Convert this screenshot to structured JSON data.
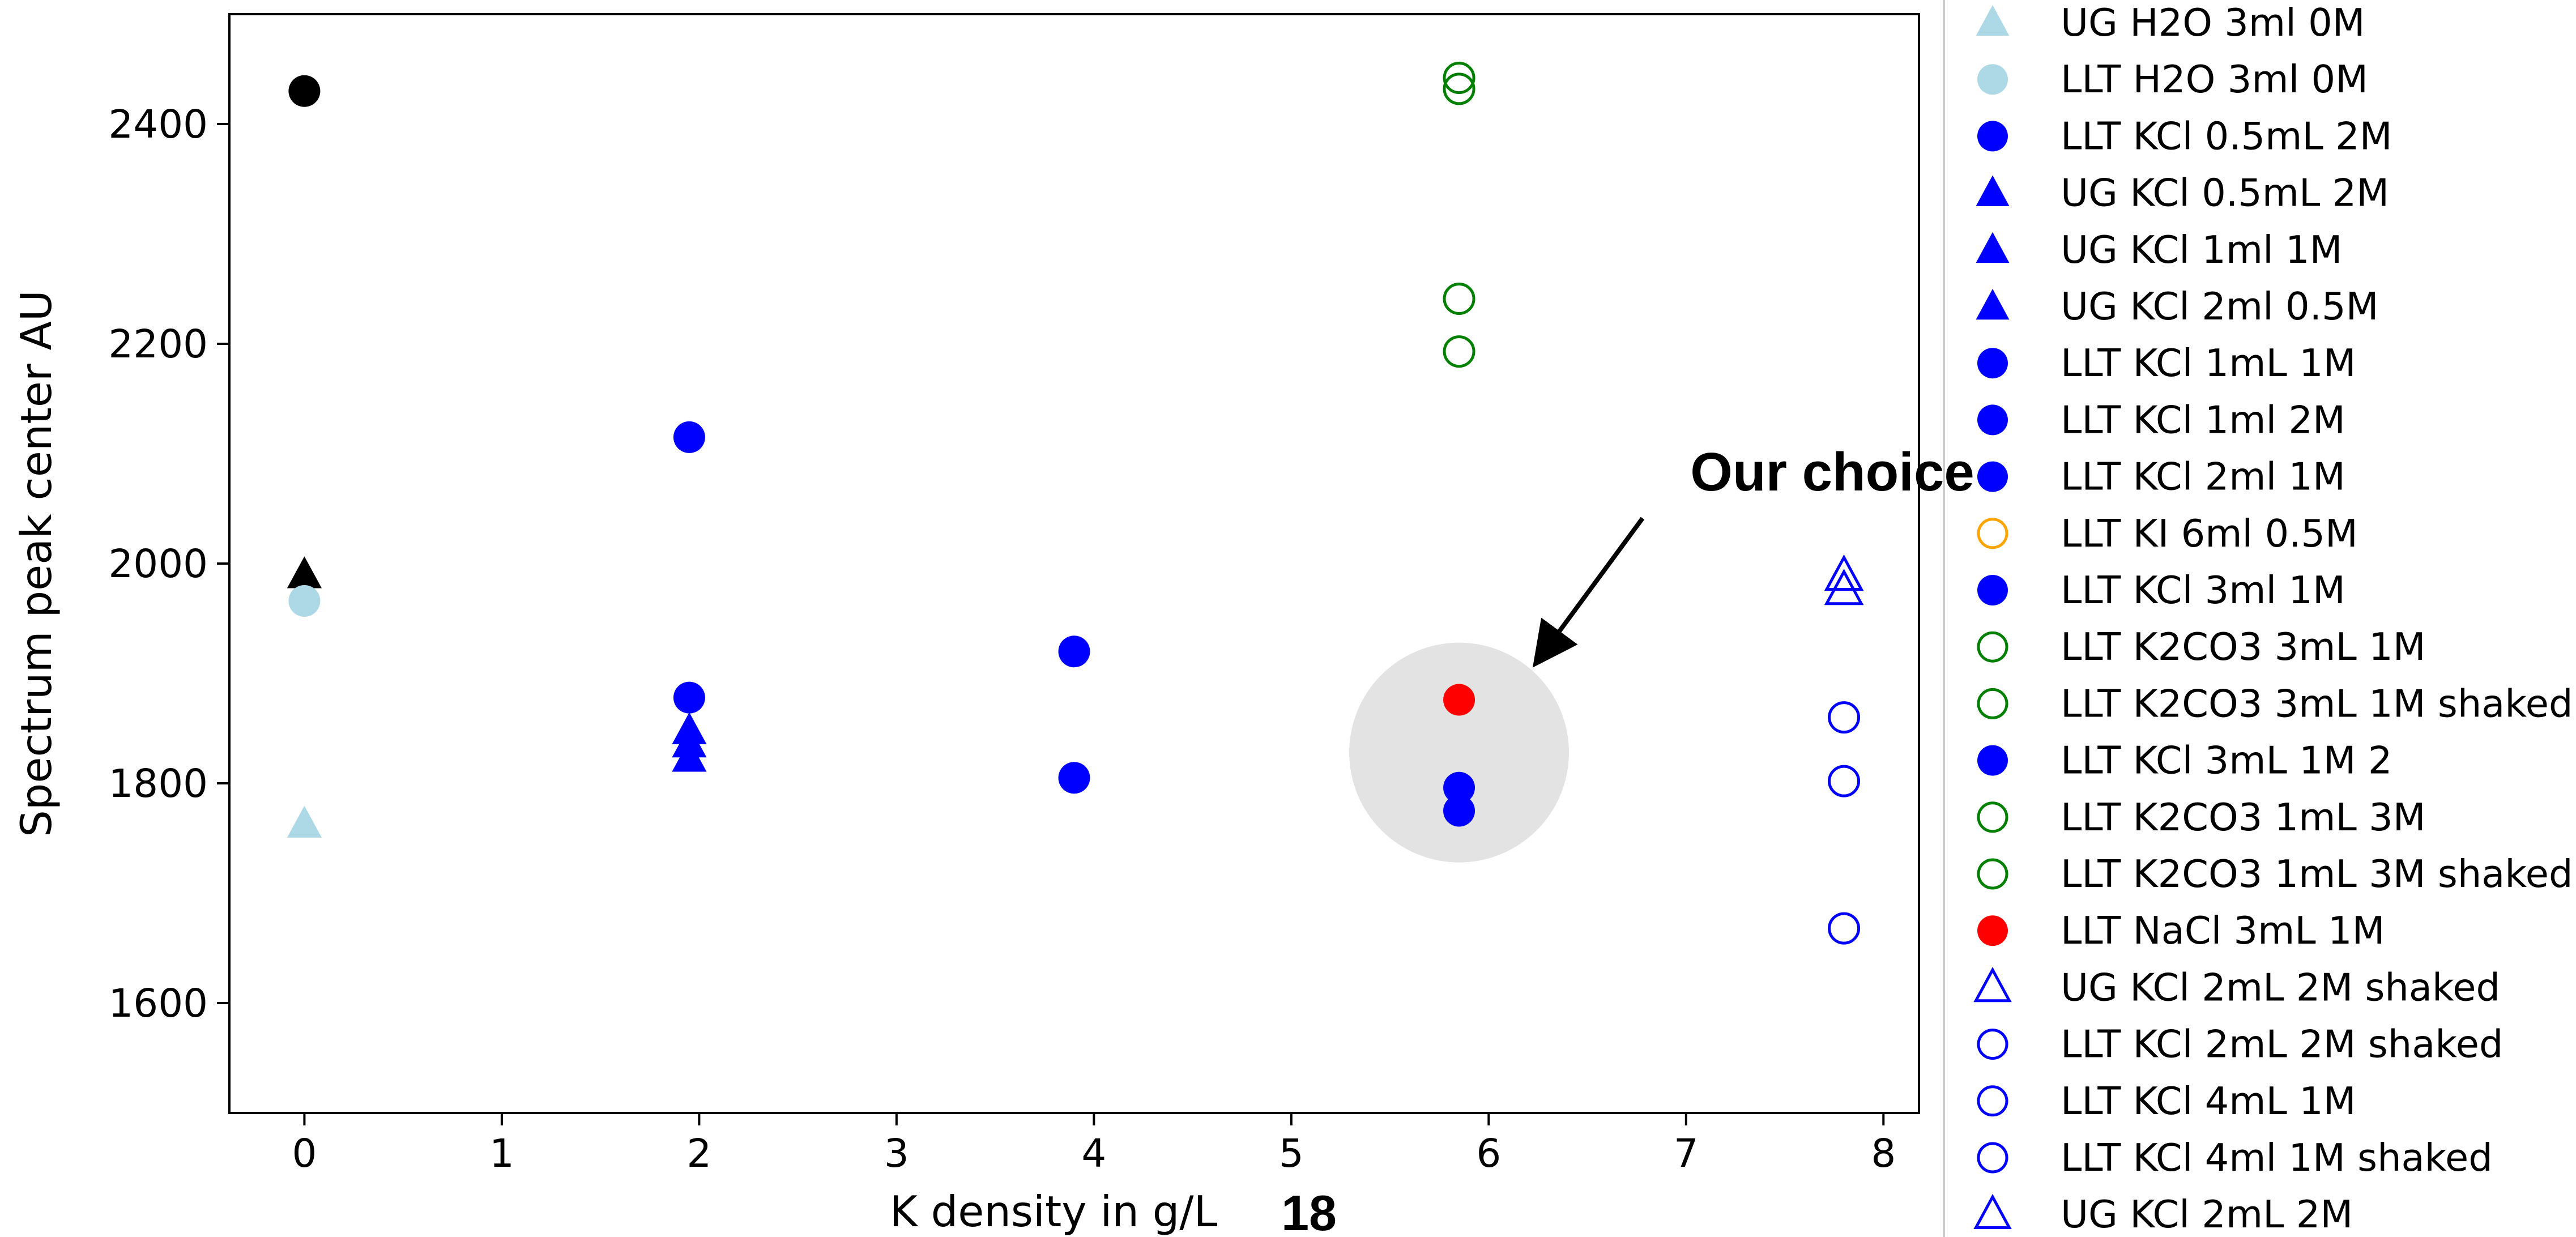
{
  "page_number": "18",
  "chart_data": {
    "type": "scatter",
    "title": "",
    "xlabel": "K density in g/L",
    "ylabel": "Spectrum peak center AU",
    "xlim": [
      -0.38,
      8.18
    ],
    "ylim": [
      1500,
      2500
    ],
    "xticks": [
      0,
      1,
      2,
      3,
      4,
      5,
      6,
      7,
      8
    ],
    "yticks": [
      1600,
      1800,
      2000,
      2200,
      2400
    ],
    "grid": false,
    "legend_position": "outside-right",
    "annotation": {
      "text": "Our choice",
      "arrow_to": [
        6.25,
        1912
      ]
    },
    "highlight_region": {
      "center": [
        5.85,
        1828
      ],
      "radius_y": 100,
      "color": "#e3e3e3"
    },
    "series": [
      {
        "name": "",
        "marker": "circle",
        "filled": true,
        "color": "#000000",
        "points": [
          [
            0,
            2430
          ]
        ]
      },
      {
        "name": "",
        "marker": "triangle",
        "filled": true,
        "color": "#000000",
        "points": [
          [
            0,
            1990
          ]
        ]
      },
      {
        "name": "UG H2O 3ml 0M",
        "marker": "triangle",
        "filled": true,
        "color": "#add8e6",
        "points": [
          [
            0,
            1763
          ]
        ]
      },
      {
        "name": "LLT H2O 3ml 0M",
        "marker": "circle",
        "filled": true,
        "color": "#add8e6",
        "points": [
          [
            0,
            1966
          ]
        ]
      },
      {
        "name": "LLT KCl 0.5mL 2M",
        "marker": "circle",
        "filled": true,
        "color": "#0000ff",
        "points": [
          [
            1.95,
            1878
          ]
        ]
      },
      {
        "name": "UG KCl 0.5mL 2M",
        "marker": "triangle",
        "filled": true,
        "color": "#0000ff",
        "points": [
          [
            1.95,
            1848
          ]
        ]
      },
      {
        "name": "UG KCl 1ml 1M",
        "marker": "triangle",
        "filled": true,
        "color": "#0000ff",
        "points": [
          [
            1.95,
            1836
          ]
        ]
      },
      {
        "name": "UG KCl 2ml 0.5M",
        "marker": "triangle",
        "filled": true,
        "color": "#0000ff",
        "points": [
          [
            1.95,
            1823
          ]
        ]
      },
      {
        "name": "LLT KCl 1mL 1M",
        "marker": "circle",
        "filled": true,
        "color": "#0000ff",
        "points": [
          [
            1.95,
            2115
          ]
        ]
      },
      {
        "name": "LLT KCl 1ml 2M",
        "marker": "circle",
        "filled": true,
        "color": "#0000ff",
        "points": [
          [
            3.9,
            1920
          ]
        ]
      },
      {
        "name": "LLT KCl 2ml 1M",
        "marker": "circle",
        "filled": true,
        "color": "#0000ff",
        "points": [
          [
            3.9,
            1805
          ]
        ]
      },
      {
        "name": "LLT KI 6ml 0.5M",
        "marker": "circle",
        "filled": false,
        "color": "#ffa500",
        "points": []
      },
      {
        "name": "LLT KCl 3ml 1M",
        "marker": "circle",
        "filled": true,
        "color": "#0000ff",
        "points": [
          [
            5.85,
            1796
          ]
        ]
      },
      {
        "name": "LLT K2CO3 3mL 1M",
        "marker": "circle",
        "filled": false,
        "color": "#008000",
        "points": [
          [
            5.85,
            2442
          ]
        ]
      },
      {
        "name": "LLT K2CO3 3mL 1M shaked",
        "marker": "circle",
        "filled": false,
        "color": "#008000",
        "points": [
          [
            5.85,
            2432
          ]
        ]
      },
      {
        "name": "LLT KCl 3mL 1M 2",
        "marker": "circle",
        "filled": true,
        "color": "#0000ff",
        "points": [
          [
            5.85,
            1775
          ]
        ]
      },
      {
        "name": "LLT K2CO3 1mL 3M",
        "marker": "circle",
        "filled": false,
        "color": "#008000",
        "points": [
          [
            5.85,
            2241
          ]
        ]
      },
      {
        "name": "LLT K2CO3 1mL 3M shaked",
        "marker": "circle",
        "filled": false,
        "color": "#008000",
        "points": [
          [
            5.85,
            2193
          ]
        ]
      },
      {
        "name": "LLT NaCl 3mL 1M",
        "marker": "circle",
        "filled": true,
        "color": "#ff0000",
        "points": [
          [
            5.85,
            1876
          ]
        ]
      },
      {
        "name": "UG KCl 2mL 2M shaked",
        "marker": "triangle",
        "filled": false,
        "color": "#0000ff",
        "points": [
          [
            7.8,
            1989
          ]
        ]
      },
      {
        "name": "LLT KCl 2mL 2M shaked",
        "marker": "circle",
        "filled": false,
        "color": "#0000ff",
        "points": [
          [
            7.8,
            1860
          ]
        ]
      },
      {
        "name": "LLT KCl 4mL 1M",
        "marker": "circle",
        "filled": false,
        "color": "#0000ff",
        "points": [
          [
            7.8,
            1802
          ]
        ]
      },
      {
        "name": "LLT KCl 4ml 1M shaked",
        "marker": "circle",
        "filled": false,
        "color": "#0000ff",
        "points": [
          [
            7.8,
            1668
          ]
        ]
      },
      {
        "name": "UG KCl 2mL 2M",
        "marker": "triangle",
        "filled": false,
        "color": "#0000ff",
        "points": [
          [
            7.8,
            1976
          ]
        ]
      }
    ]
  }
}
